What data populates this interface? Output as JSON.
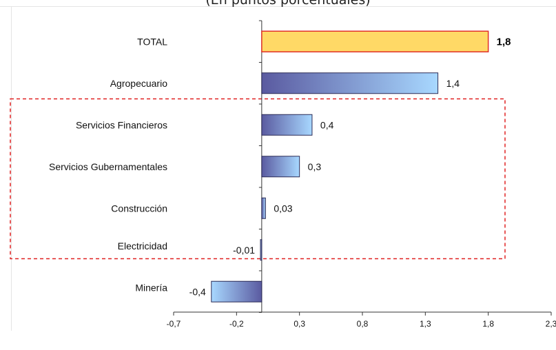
{
  "chart_data": {
    "type": "bar",
    "orientation": "horizontal",
    "title": "(En puntos porcentuales)",
    "categories": [
      "TOTAL",
      "Agropecuario",
      "Servicios Financieros",
      "Servicios Gubernamentales",
      "Construcción",
      "Electricidad",
      "Minería"
    ],
    "values": [
      1.8,
      1.4,
      0.4,
      0.3,
      0.03,
      -0.01,
      -0.4
    ],
    "value_labels": [
      "1,8",
      "1,4",
      "0,4",
      "0,3",
      "0,03",
      "-0,01",
      "-0,4"
    ],
    "xlim": [
      -0.7,
      2.3
    ],
    "xticks": [
      -0.7,
      -0.2,
      0.3,
      0.8,
      1.3,
      1.8,
      2.3
    ],
    "xtick_labels": [
      "-0,7",
      "-0,2",
      "0,3",
      "0,8",
      "1,3",
      "1,8",
      "2,3"
    ],
    "highlighted_categories": [
      "Agropecuario",
      "Servicios Financieros",
      "Servicios Gubernamentales",
      "Construcción"
    ],
    "colors": {
      "total_fill": "#ffd966",
      "total_border": "#e0302a",
      "bar_dark": "#5a5aa0",
      "bar_light": "#a8d8ff",
      "highlight_box": "#e02020"
    },
    "grid": false,
    "legend": "none"
  }
}
